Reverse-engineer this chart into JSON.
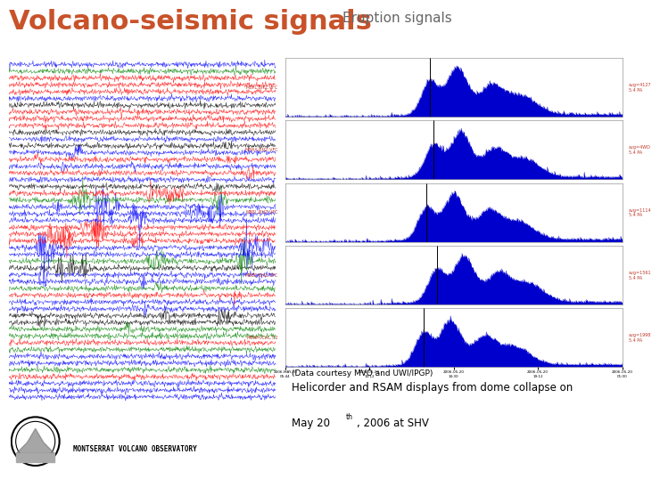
{
  "title_main": "Volcano-seismic signals",
  "title_sub": "Eruption signals",
  "title_main_color": "#c8522a",
  "title_sub_color": "#666666",
  "title_main_fontsize": 22,
  "title_sub_fontsize": 11,
  "data_courtesy": "(Data courtesy MVO and UWI/IPGP)",
  "mvo_text": "MONTSERRAT VOLCANO OBSERVATORY",
  "bg_color": "#ffffff",
  "rsam_color": "#0000cc",
  "n_rsam_panels": 5,
  "panel_labels_left": [
    "MBFL.BHZ.VFC",
    "MBHA.BHZ.VFC",
    "MBEL.BHZ.VFC",
    "MBBE.BHZ.VFC",
    "MBWH.CAL.T.2"
  ],
  "panel_labels_right": [
    "avg=4127\n5.4 PA",
    "avg=4WD\n5.4 PA",
    "avg=1114\n5.4 PA",
    "avg=1561\n5.4 PA",
    "avg=1998\n5.4 PA"
  ],
  "helicorder_line_colors": [
    "blue",
    "red",
    "green",
    "black"
  ],
  "helicorder_color_probs": [
    0.35,
    0.3,
    0.2,
    0.15
  ]
}
